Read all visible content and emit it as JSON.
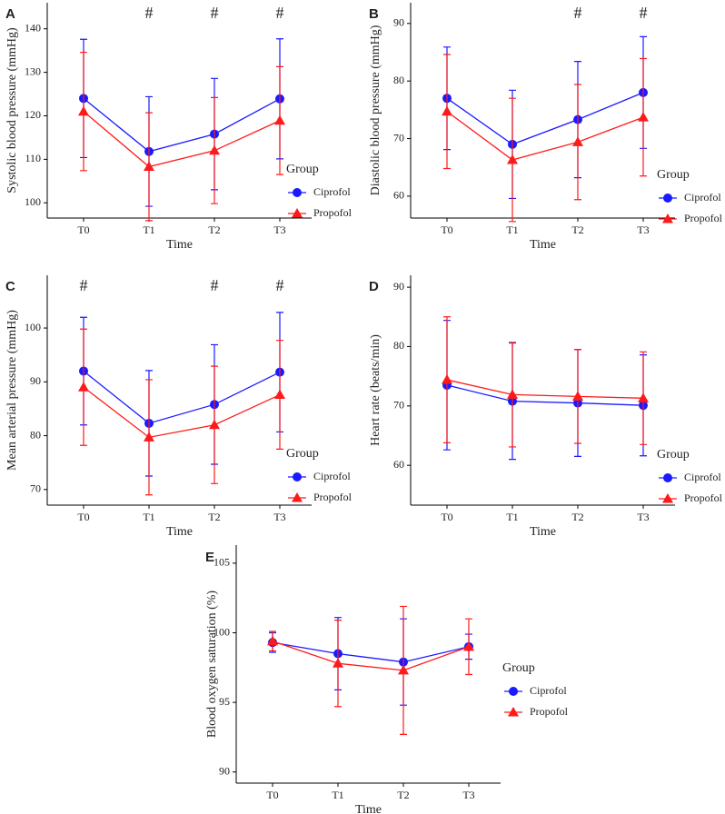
{
  "chart_data": [
    {
      "type": "line",
      "panel": "A",
      "ylabel": "Systolic blood pressure (mmHg)",
      "xlabel": "Time",
      "legend_title": "Group",
      "categories": [
        "T0",
        "T1",
        "T2",
        "T3"
      ],
      "annotations": [
        null,
        "#",
        "#",
        "#"
      ],
      "series": [
        {
          "name": "Ciprofol",
          "color": "#1a1aff",
          "marker": "circle",
          "values": [
            124,
            111.8,
            115.8,
            123.9
          ],
          "errors": [
            13.6,
            12.6,
            12.8,
            13.8
          ]
        },
        {
          "name": "Propofol",
          "color": "#ff1a1a",
          "marker": "triangle",
          "values": [
            121,
            108.3,
            112,
            118.9
          ],
          "errors": [
            13.6,
            12.4,
            12.2,
            12.4
          ]
        }
      ],
      "ylim": [
        96.5,
        146
      ],
      "yticks": [
        100,
        110,
        120,
        130,
        140
      ]
    },
    {
      "type": "line",
      "panel": "B",
      "ylabel": "Diastolic blood pressure (mmHg)",
      "xlabel": "Time",
      "legend_title": "Group",
      "categories": [
        "T0",
        "T1",
        "T2",
        "T3"
      ],
      "annotations": [
        null,
        null,
        "#",
        "#"
      ],
      "series": [
        {
          "name": "Ciprofol",
          "color": "#1a1aff",
          "marker": "circle",
          "values": [
            77,
            69,
            73.3,
            78
          ],
          "errors": [
            8.9,
            9.4,
            10.1,
            9.7
          ]
        },
        {
          "name": "Propofol",
          "color": "#ff1a1a",
          "marker": "triangle",
          "values": [
            74.7,
            66.3,
            69.4,
            73.7
          ],
          "errors": [
            9.9,
            10.7,
            10,
            10.2
          ]
        }
      ],
      "ylim": [
        56.2,
        93.6
      ],
      "yticks": [
        60,
        70,
        80,
        90
      ]
    },
    {
      "type": "line",
      "panel": "C",
      "ylabel": "Mean arterial pressure (mmHg)",
      "xlabel": "Time",
      "legend_title": "Group",
      "categories": [
        "T0",
        "T1",
        "T2",
        "T3"
      ],
      "annotations": [
        "#",
        null,
        "#",
        "#"
      ],
      "series": [
        {
          "name": "Ciprofol",
          "color": "#1a1aff",
          "marker": "circle",
          "values": [
            92,
            82.3,
            85.8,
            91.8
          ],
          "errors": [
            10,
            9.8,
            11.1,
            11.1
          ]
        },
        {
          "name": "Propofol",
          "color": "#ff1a1a",
          "marker": "triangle",
          "values": [
            89,
            79.7,
            82,
            87.6
          ],
          "errors": [
            10.8,
            10.7,
            10.9,
            10.1
          ]
        }
      ],
      "ylim": [
        67.1,
        109.8
      ],
      "yticks": [
        70,
        80,
        90,
        100
      ]
    },
    {
      "type": "line",
      "panel": "D",
      "ylabel": "Heart rate (beats/min)",
      "xlabel": "Time",
      "legend_title": "Group",
      "categories": [
        "T0",
        "T1",
        "T2",
        "T3"
      ],
      "series": [
        {
          "name": "Ciprofol",
          "color": "#1a1aff",
          "marker": "circle",
          "values": [
            73.5,
            70.8,
            70.5,
            70.1
          ],
          "errors": [
            10.9,
            9.8,
            9,
            8.5
          ]
        },
        {
          "name": "Propofol",
          "color": "#ff1a1a",
          "marker": "triangle",
          "values": [
            74.4,
            71.9,
            71.6,
            71.3
          ],
          "errors": [
            10.6,
            8.8,
            7.9,
            7.8
          ]
        }
      ],
      "ylim": [
        53.3,
        92
      ],
      "yticks": [
        60,
        70,
        80,
        90
      ]
    },
    {
      "type": "line",
      "panel": "E",
      "ylabel": "Blood oxygen saturation (%)",
      "xlabel": "Time",
      "legend_title": "Group",
      "categories": [
        "T0",
        "T1",
        "T2",
        "T3"
      ],
      "series": [
        {
          "name": "Ciprofol",
          "color": "#1a1aff",
          "marker": "circle",
          "values": [
            99.3,
            98.5,
            97.9,
            99
          ],
          "errors": [
            0.7,
            2.6,
            3.1,
            0.9
          ]
        },
        {
          "name": "Propofol",
          "color": "#ff1a1a",
          "marker": "triangle",
          "values": [
            99.4,
            97.8,
            97.3,
            99
          ],
          "errors": [
            0.7,
            3.1,
            4.6,
            2
          ]
        }
      ],
      "ylim": [
        89.2,
        106.3
      ],
      "yticks": [
        90,
        95,
        100,
        105
      ]
    }
  ]
}
